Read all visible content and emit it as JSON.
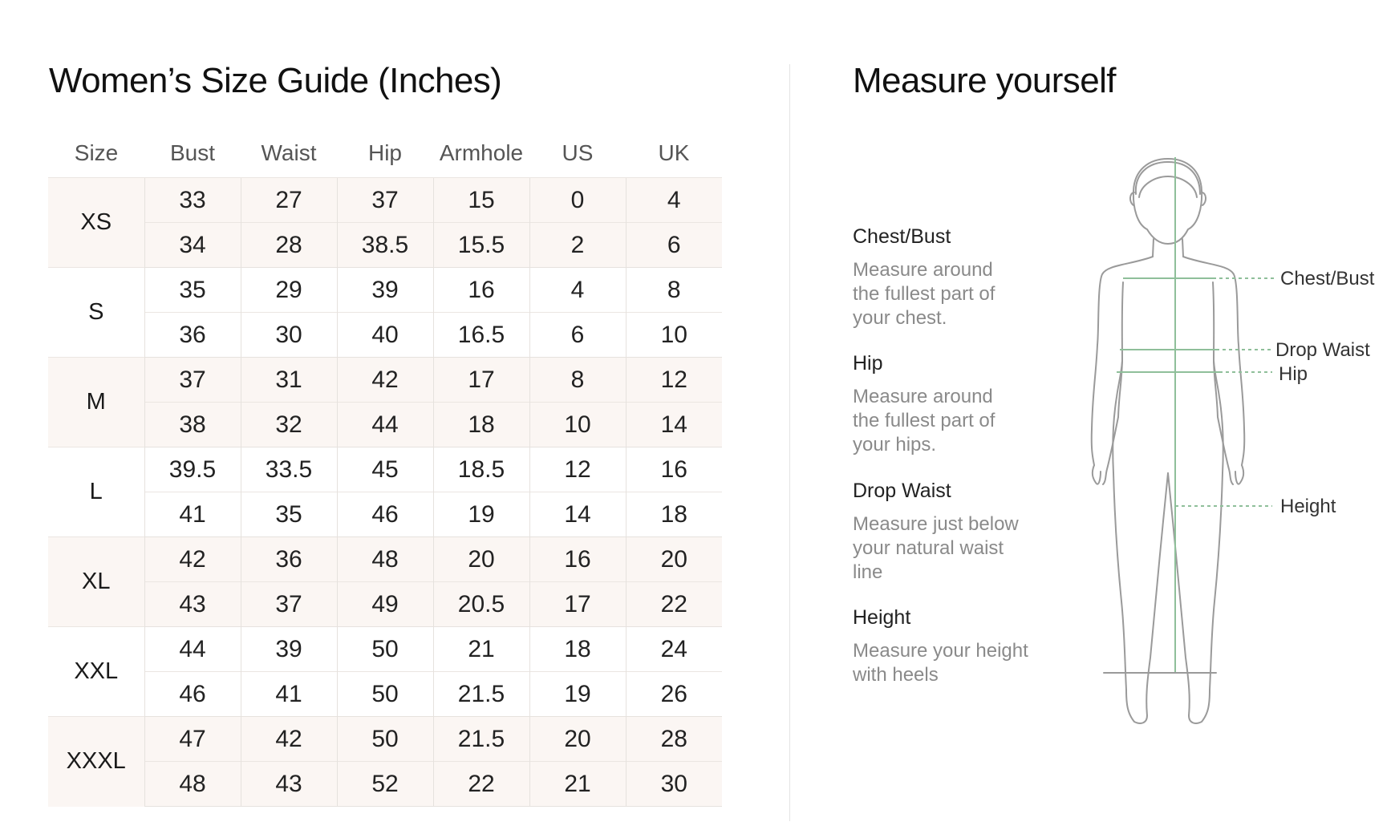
{
  "left": {
    "title": "Women’s Size Guide (Inches)"
  },
  "table": {
    "headers": [
      "Size",
      "Bust",
      "Waist",
      "Hip",
      "Armhole",
      "US",
      "UK"
    ],
    "groups": [
      {
        "size": "XS",
        "rows": [
          [
            "33",
            "27",
            "37",
            "15",
            "0",
            "4"
          ],
          [
            "34",
            "28",
            "38.5",
            "15.5",
            "2",
            "6"
          ]
        ]
      },
      {
        "size": "S",
        "rows": [
          [
            "35",
            "29",
            "39",
            "16",
            "4",
            "8"
          ],
          [
            "36",
            "30",
            "40",
            "16.5",
            "6",
            "10"
          ]
        ]
      },
      {
        "size": "M",
        "rows": [
          [
            "37",
            "31",
            "42",
            "17",
            "8",
            "12"
          ],
          [
            "38",
            "32",
            "44",
            "18",
            "10",
            "14"
          ]
        ]
      },
      {
        "size": "L",
        "rows": [
          [
            "39.5",
            "33.5",
            "45",
            "18.5",
            "12",
            "16"
          ],
          [
            "41",
            "35",
            "46",
            "19",
            "14",
            "18"
          ]
        ]
      },
      {
        "size": "XL",
        "rows": [
          [
            "42",
            "36",
            "48",
            "20",
            "16",
            "20"
          ],
          [
            "43",
            "37",
            "49",
            "20.5",
            "17",
            "22"
          ]
        ]
      },
      {
        "size": "XXL",
        "rows": [
          [
            "44",
            "39",
            "50",
            "21",
            "18",
            "24"
          ],
          [
            "46",
            "41",
            "50",
            "21.5",
            "19",
            "26"
          ]
        ]
      },
      {
        "size": "XXXL",
        "rows": [
          [
            "47",
            "42",
            "50",
            "21.5",
            "20",
            "28"
          ],
          [
            "48",
            "43",
            "52",
            "22",
            "21",
            "30"
          ]
        ]
      }
    ]
  },
  "right": {
    "title": "Measure yourself",
    "items": [
      {
        "label": "Chest/Bust",
        "desc_lines": [
          "Measure around",
          "the fullest part of",
          "your chest."
        ]
      },
      {
        "label": "Hip",
        "desc_lines": [
          "Measure around",
          "the fullest part of",
          "your hips."
        ]
      },
      {
        "label": "Drop Waist",
        "desc_lines": [
          "Measure just below",
          "your natural waist",
          "line"
        ]
      },
      {
        "label": "Height",
        "desc_lines": [
          "Measure your height",
          "with heels"
        ]
      }
    ],
    "figure_labels": {
      "chest": "Chest/Bust",
      "drop_waist": "Drop Waist",
      "hip": "Hip",
      "height": "Height"
    }
  },
  "colors": {
    "shade_row": "#fbf6f3",
    "measure_line": "#8fbf9a",
    "figure_outline": "#9a9a9a"
  },
  "icons": {
    "figure": "female-body-outline-icon"
  }
}
